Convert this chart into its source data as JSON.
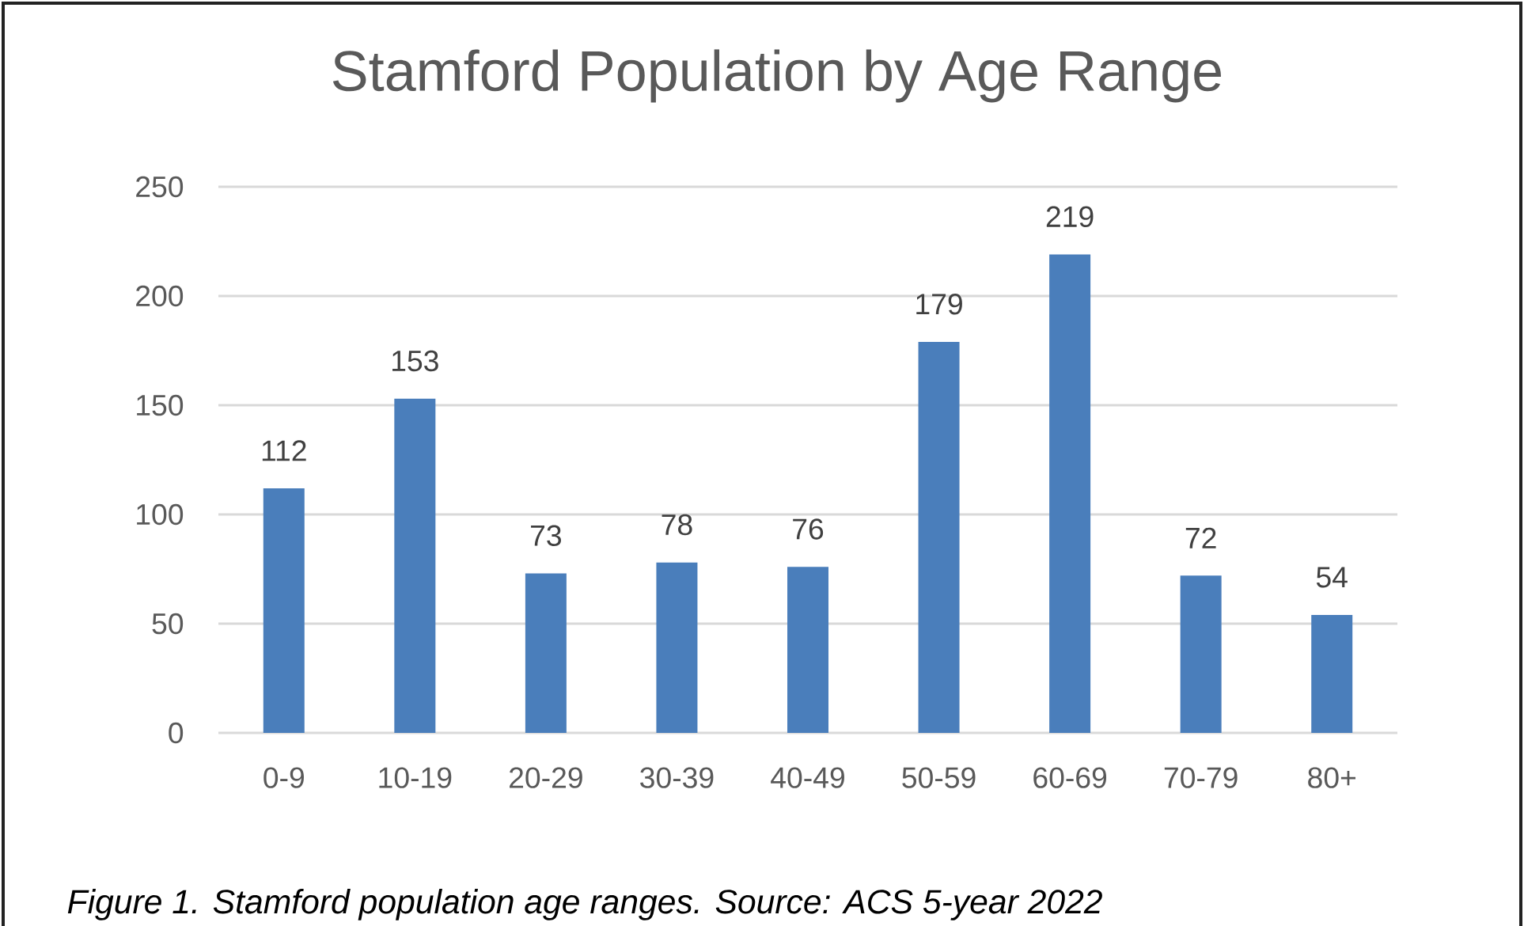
{
  "chart_data": {
    "type": "bar",
    "title": "Stamford Population by Age Range",
    "categories": [
      "0-9",
      "10-19",
      "20-29",
      "30-39",
      "40-49",
      "50-59",
      "60-69",
      "70-79",
      "80+"
    ],
    "values": [
      112,
      153,
      73,
      78,
      76,
      179,
      219,
      72,
      54
    ],
    "color": "#4a7ebb",
    "ylim": [
      0,
      250
    ],
    "yticks": [
      0,
      50,
      100,
      150,
      200,
      250
    ],
    "grid": "y",
    "data_labels": true,
    "annotations": [
      "Figure 1. Stamford population age ranges. Source: ACS 5-year 2022"
    ]
  }
}
